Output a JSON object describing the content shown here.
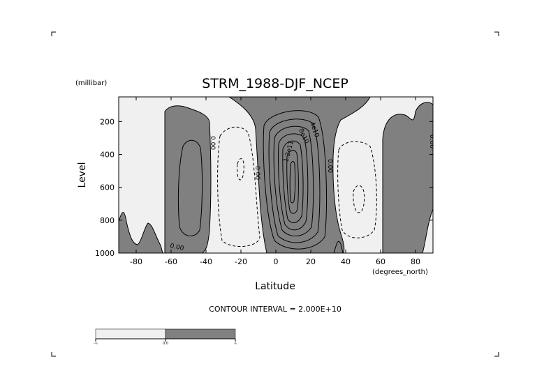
{
  "chart_data": {
    "type": "contour",
    "title": "STRM_1988-DJF_NCEP",
    "xlabel": "Latitude",
    "ylabel": "Level",
    "y_units": "(millibar)",
    "x_units": "(degrees_north)",
    "xlim": [
      -90,
      90
    ],
    "ylim": [
      1000,
      50
    ],
    "y_reversed": true,
    "x_ticks": [
      -80,
      -60,
      -40,
      -20,
      0,
      20,
      40,
      60,
      80
    ],
    "y_ticks": [
      200,
      400,
      600,
      800,
      1000
    ],
    "contour_interval_text": "CONTOUR INTERVAL = 2.000E+10",
    "contour_interval": 20000000000,
    "shading": {
      "negative": "#f0f0f0",
      "positive": "#808080"
    },
    "legend_labels": [
      "-∞",
      "0.0",
      "∞"
    ],
    "contour_labels": [
      {
        "text": "0.00",
        "lat": -35,
        "level": 300
      },
      {
        "text": "0.00",
        "lat": -11,
        "level": 470
      },
      {
        "text": "0.00",
        "lat": 31,
        "level": 400
      },
      {
        "text": "0.00",
        "lat": 87,
        "level": 250
      },
      {
        "text": "0.00",
        "lat": -88,
        "level": 820
      },
      {
        "text": "0.00",
        "lat": -55,
        "level": 960
      },
      {
        "text": "4e10",
        "lat": 22,
        "level": 230
      },
      {
        "text": "8e10",
        "lat": 17,
        "level": 280
      },
      {
        "text": "1.2e11",
        "lat": 7,
        "level": 380
      }
    ]
  },
  "colors": {
    "negative_fill": "#f0f0f0",
    "positive_fill": "#808080",
    "line": "#000000",
    "background": "#ffffff"
  }
}
